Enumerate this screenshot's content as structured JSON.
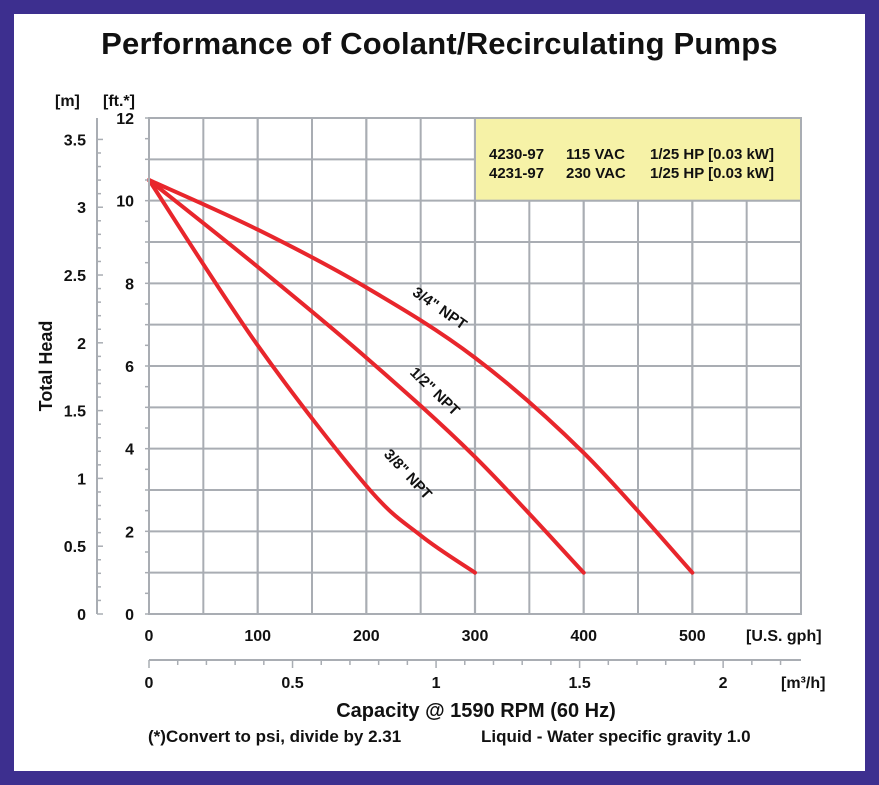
{
  "chart_data": {
    "type": "line",
    "title": "Performance of Coolant/Recirculating Pumps",
    "ylabel": "Total Head",
    "y_unit_ft": "[ft.*]",
    "y_unit_m": "[m]",
    "x_unit_gph": "[U.S. gph]",
    "x_unit_m3h": "[m³/h]",
    "xlabel": "Capacity @ 1590 RPM (60 Hz)",
    "xlim": [
      0,
      600
    ],
    "ylim": [
      0,
      12
    ],
    "ylim_m": [
      0,
      3.658
    ],
    "x_ticks": [
      "0",
      "100",
      "200",
      "300",
      "400",
      "500"
    ],
    "x_tick_values": [
      0,
      100,
      200,
      300,
      400,
      500
    ],
    "y_ticks": [
      "0",
      "2",
      "4",
      "6",
      "8",
      "10",
      "12"
    ],
    "y_tick_values": [
      0,
      2,
      4,
      6,
      8,
      10,
      12
    ],
    "y_m_ticks": [
      "0",
      "0.5",
      "1",
      "1.5",
      "2",
      "2.5",
      "3",
      "3.5"
    ],
    "y_m_tick_values": [
      0,
      0.5,
      1,
      1.5,
      2,
      2.5,
      3,
      3.5
    ],
    "x2_ticks": [
      "0",
      "0.5",
      "1",
      "1.5",
      "2"
    ],
    "x2_tick_values": [
      0,
      0.5,
      1,
      1.5,
      2
    ],
    "grid": true,
    "line_color": "#e8262c",
    "grid_color": "#a9adb3",
    "series": [
      {
        "name": "3/4\" NPT",
        "points": [
          [
            0,
            10.5
          ],
          [
            100,
            9.3
          ],
          [
            200,
            7.9
          ],
          [
            300,
            6.2
          ],
          [
            400,
            3.9
          ],
          [
            500,
            1.0
          ]
        ],
        "label_at": [
          265,
          7.3
        ],
        "label_angle": 35
      },
      {
        "name": "1/2\" NPT",
        "points": [
          [
            0,
            10.5
          ],
          [
            100,
            8.4
          ],
          [
            200,
            6.2
          ],
          [
            300,
            3.8
          ],
          [
            400,
            1.0
          ]
        ],
        "label_at": [
          260,
          5.3
        ],
        "label_angle": 44
      },
      {
        "name": "3/8\" NPT",
        "points": [
          [
            0,
            10.5
          ],
          [
            100,
            6.5
          ],
          [
            200,
            3.1
          ],
          [
            250,
            1.9
          ],
          [
            300,
            1.0
          ]
        ],
        "label_at": [
          235,
          3.3
        ],
        "label_angle": 47
      }
    ],
    "models": [
      [
        "4230-97",
        "115 VAC",
        "1/25 HP [0.03 kW]"
      ],
      [
        "4231-97",
        "230 VAC",
        "1/25 HP [0.03 kW]"
      ]
    ],
    "legend_color": "#f6f2a7",
    "footnote": "(*)Convert to psi, divide by 2.31",
    "liquid_note": "Liquid - Water specific gravity 1.0"
  },
  "colors": {
    "border": "#3d2f8f",
    "background": "#ffffff"
  }
}
